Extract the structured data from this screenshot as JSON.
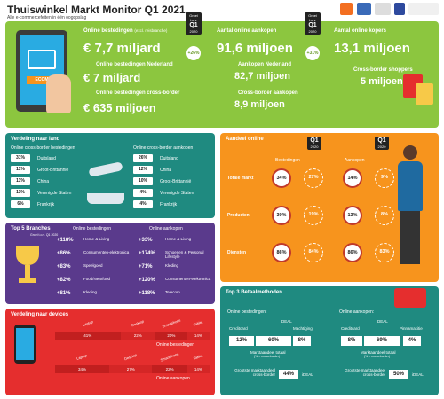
{
  "header": {
    "title": "Thuiswinkel Markt Monitor Q1 2021",
    "subtitle": "Alle e-commercefeiten in één oogopslag"
  },
  "top": {
    "online_spend_label": "Online bestedingen",
    "online_spend_note": "(excl. reisbranche)",
    "online_spend": "€ 7,7 miljard",
    "nl_label": "Online bestedingen Nederland",
    "nl": "€ 7 miljard",
    "cb_label": "Online bestedingen cross-border",
    "cb": "€ 635 miljoen",
    "growth_badge_top": "Groei t.o.v.",
    "growth_badge_q": "Q1",
    "growth_badge_year": "2020",
    "growth1": "+26%",
    "purchases_label": "Aantal online aankopen",
    "purchases": "91,6 miljoen",
    "purch_nl_label": "Aankopen Nederland",
    "purch_nl": "82,7 miljoen",
    "purch_cb_label": "Cross-border aankopen",
    "purch_cb": "8,9 miljoen",
    "growth2": "+31%",
    "buyers_label": "Aantal online kopers",
    "buyers": "13,1 miljoen",
    "cb_shoppers_label": "Cross-border shoppers",
    "cb_shoppers": "5 miljoen",
    "ecom_label": "ECOM"
  },
  "country": {
    "title": "Verdeling naar land",
    "spend_title": "Online cross-border bestedingen",
    "spend": [
      {
        "v": "31%",
        "c": "Duitsland"
      },
      {
        "v": "11%",
        "c": "Groot-Brittannië"
      },
      {
        "v": "11%",
        "c": "China"
      },
      {
        "v": "11%",
        "c": "Verenigde Staten"
      },
      {
        "v": "6%",
        "c": "Frankrijk"
      }
    ],
    "purch_title": "Online cross-border aankopen",
    "purch": [
      {
        "v": "26%",
        "c": "Duitsland"
      },
      {
        "v": "12%",
        "c": "China"
      },
      {
        "v": "10%",
        "c": "Groot-Brittannië"
      },
      {
        "v": "4%",
        "c": "Verenigde Staten"
      },
      {
        "v": "4%",
        "c": "Frankrijk"
      }
    ]
  },
  "branches": {
    "title": "Top 5 Branches",
    "sub": "Groei t.o.v. Q1 2020",
    "spend_title": "Online bestedingen",
    "spend": [
      {
        "v": "+118%",
        "c": "Home & Living"
      },
      {
        "v": "+86%",
        "c": "Consumenten-elektronica"
      },
      {
        "v": "+83%",
        "c": "Speelgoed"
      },
      {
        "v": "+82%",
        "c": "Food/Nearfood"
      },
      {
        "v": "+81%",
        "c": "Kleding"
      }
    ],
    "purch_title": "Online aankopen",
    "purch": [
      {
        "v": "+33%",
        "c": "Home & Living"
      },
      {
        "v": "+174%",
        "c": "Schoenen & Personal Lifestyle"
      },
      {
        "v": "+71%",
        "c": "Kleding"
      },
      {
        "v": "+120%",
        "c": "Consumenten-elektronica"
      },
      {
        "v": "+118%",
        "c": "Telecom"
      }
    ]
  },
  "devices": {
    "title": "Verdeling naar devices",
    "labels": [
      "Laptop",
      "Desktop",
      "Smartphone",
      "Tablet"
    ],
    "spend": [
      41,
      22,
      20,
      14
    ],
    "spend_label": "Online bestedingen",
    "spend_text": [
      "41%",
      "22%",
      "20%",
      "14%"
    ],
    "purch": [
      34,
      27,
      22,
      14
    ],
    "purch_label": "Online aankopen",
    "purch_text": [
      "34%",
      "27%",
      "22%",
      "14%"
    ]
  },
  "share": {
    "title": "Aandeel online",
    "badge_q": "Q1",
    "badge_year": "2020",
    "col1": "Bestedingen",
    "col2": "Aankopen",
    "rows": [
      {
        "label": "Totale markt",
        "a": "34%",
        "b": "27%",
        "c": "14%",
        "d": "9%"
      },
      {
        "label": "Producten",
        "a": "30%",
        "b": "19%",
        "c": "13%",
        "d": "8%"
      },
      {
        "label": "Diensten",
        "a": "86%",
        "b": "84%",
        "c": "86%",
        "d": "83%"
      }
    ]
  },
  "pay": {
    "title": "Top 3 Betaalmethoden",
    "spend_title": "Online bestedingen:",
    "purch_title": "Online aankopen:",
    "spend": {
      "credit_label": "Creditcard",
      "credit": "12%",
      "ideal_label": "iDEAL",
      "ideal": "60%",
      "machtiging_label": "Machtiging",
      "machtiging": "8%"
    },
    "purch": {
      "credit_label": "Creditcard",
      "credit": "8%",
      "ideal_label": "iDEAL",
      "ideal": "69%",
      "pin_label": "Pinnamacitie",
      "pin": "4%"
    },
    "market_label": "Marktaandeel totaal",
    "market_note": "(% = cross-border)",
    "largest_label": "Grootste marktaandeel cross-border",
    "spend_cb": "44%",
    "purch_cb": "50%",
    "cb_method": "iDEAL"
  },
  "colors": {
    "green": "#8cc63f",
    "teal": "#1f8a80",
    "purple": "#5a3a8c",
    "red": "#e52e2e",
    "orange": "#f7941d"
  }
}
